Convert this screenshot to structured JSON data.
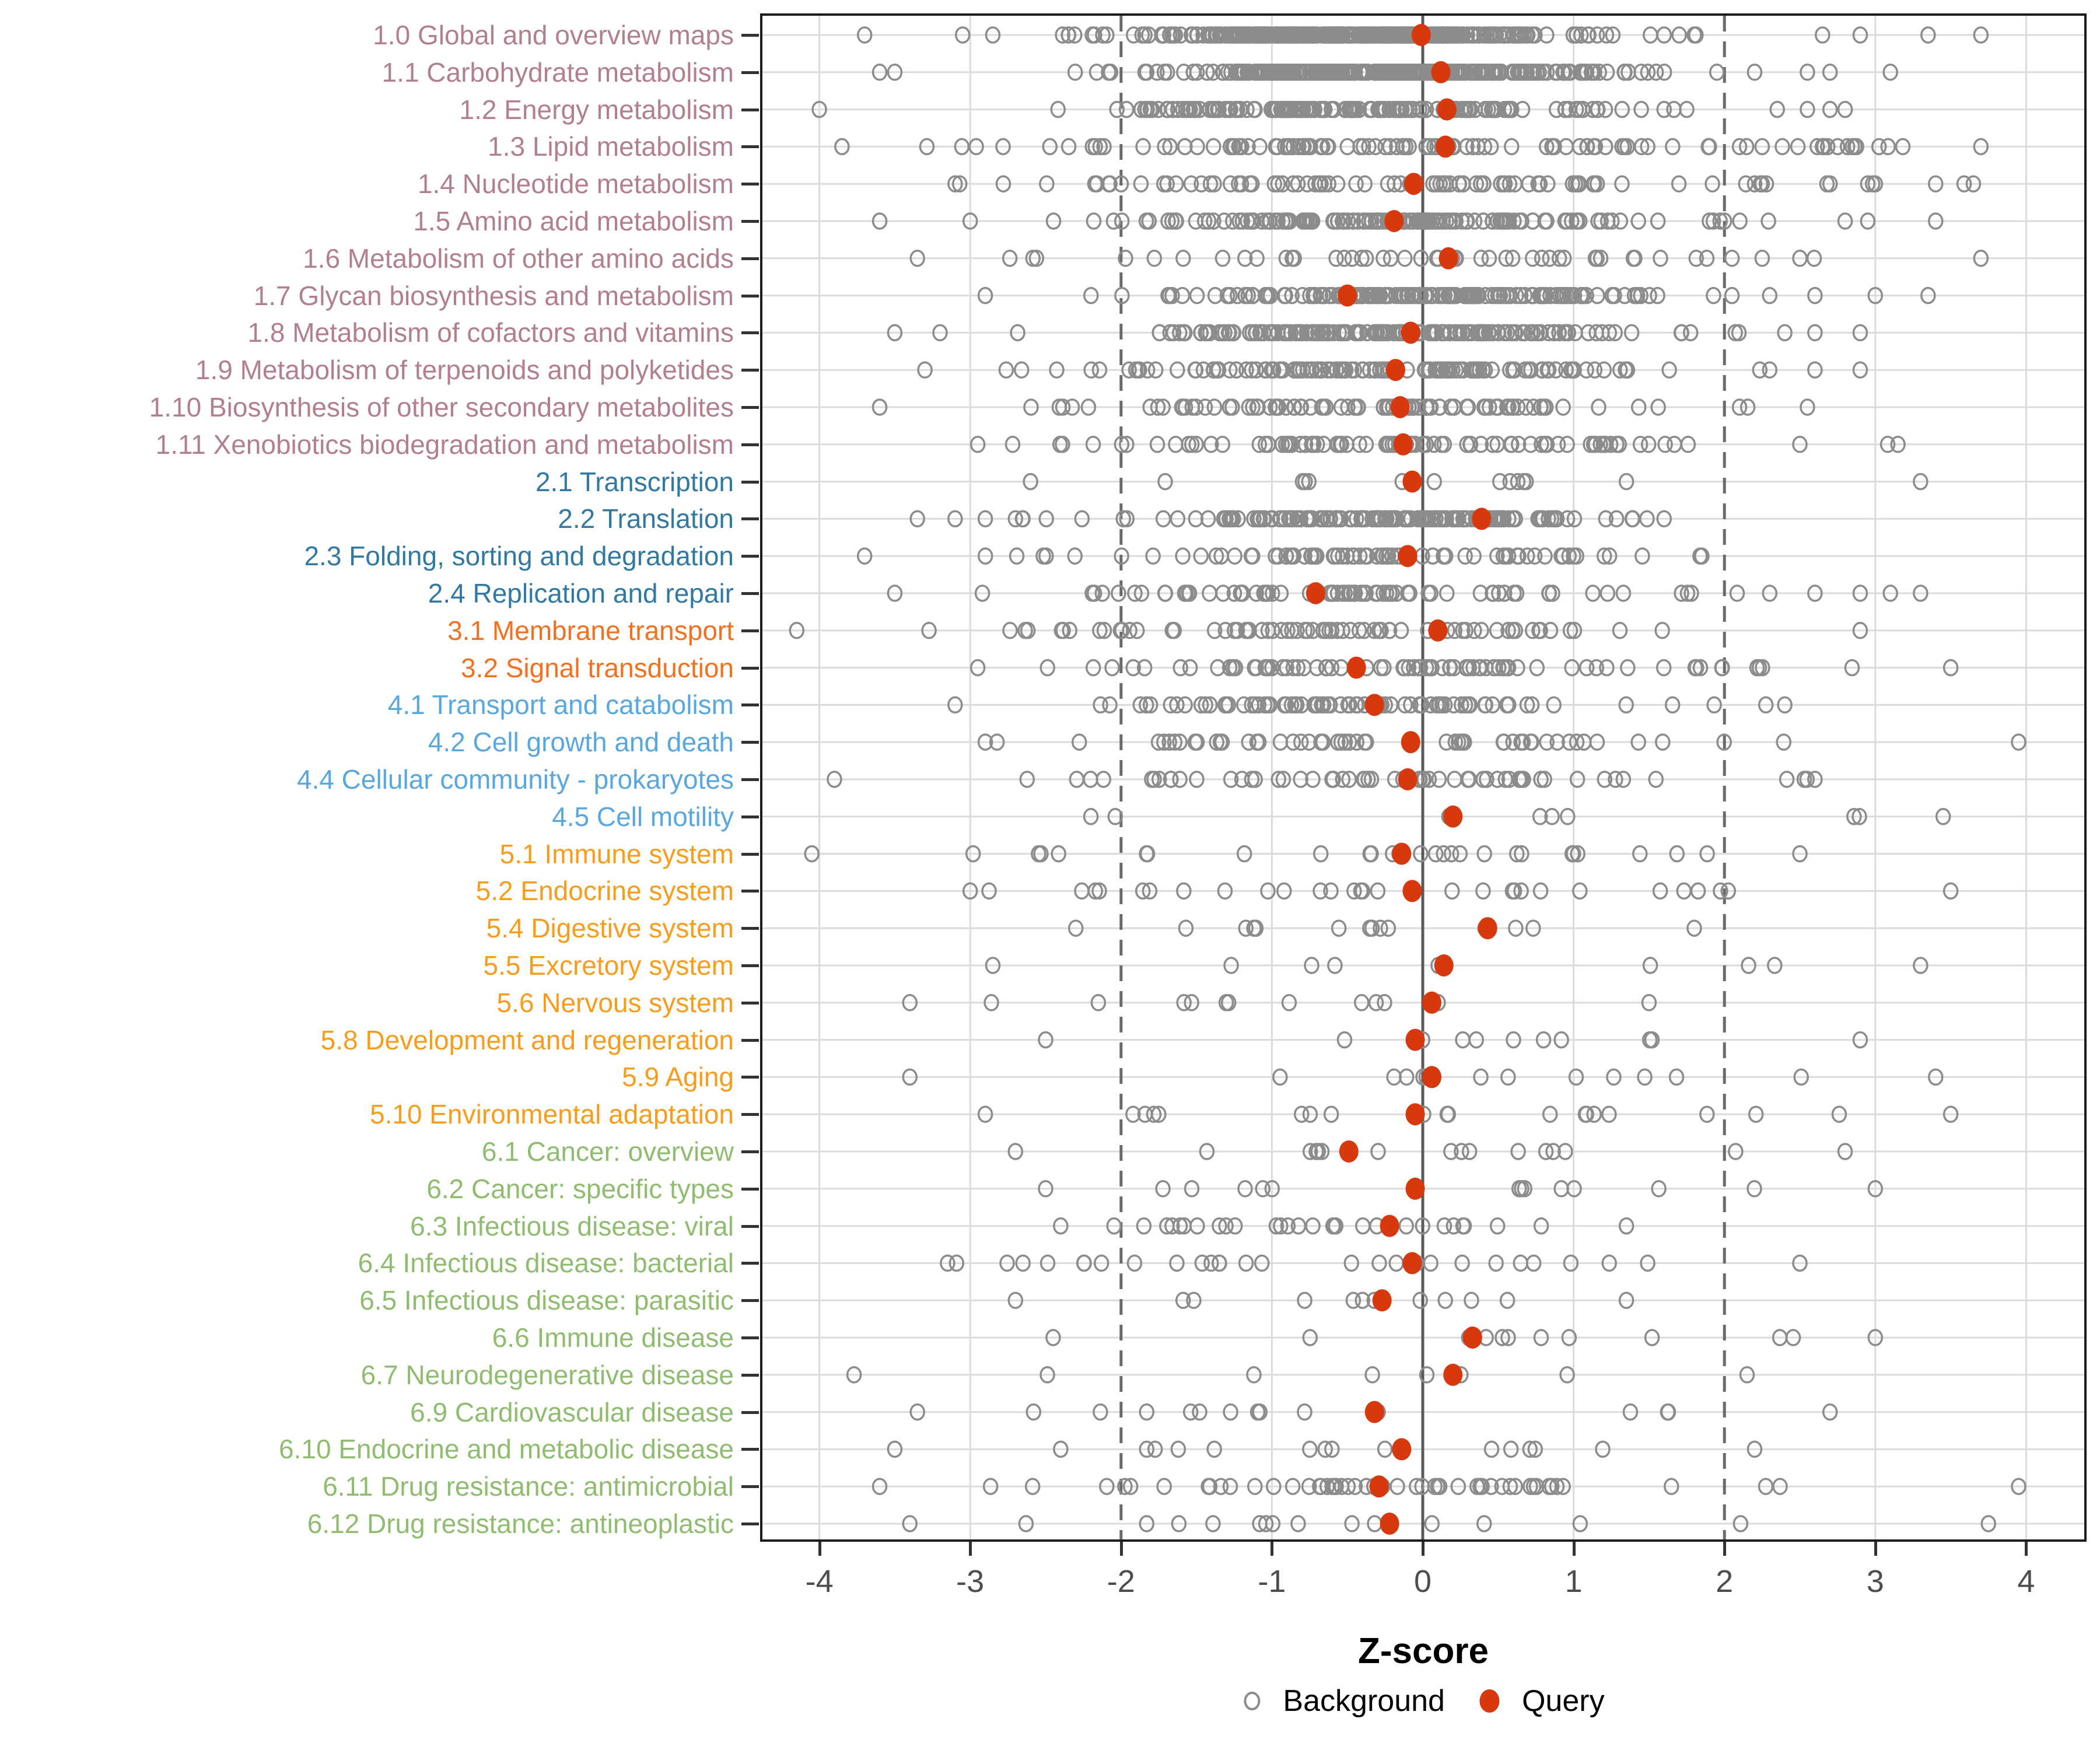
{
  "chart_data": {
    "type": "scatter",
    "subtype": "strip-dot-plot",
    "title": "",
    "xlabel": "Z-score",
    "ylabel": "",
    "xlim": [
      -4.4,
      4.4
    ],
    "x_ticks": [
      "-4",
      "-3",
      "-2",
      "-1",
      "0",
      "1",
      "2",
      "3",
      "4"
    ],
    "x_tick_values": [
      -4,
      -3,
      -2,
      -1,
      0,
      1,
      2,
      3,
      4
    ],
    "grid": "on",
    "legend_position": "bottom",
    "guides": {
      "solid_line_x": 0,
      "dashed_lines_x": [
        -2,
        2
      ]
    },
    "series_names": [
      "Background",
      "Query"
    ],
    "group_colors": {
      "1": "#B2808C",
      "2": "#3279A2",
      "3": "#F3701E",
      "4": "#58A7DE",
      "5": "#F89C1B",
      "6": "#8FBC6F"
    },
    "rows": [
      {
        "label": "1.0 Global and overview maps",
        "group": "1",
        "query": -0.01,
        "bg": {
          "n": 360,
          "mean": -0.45,
          "sd": 0.75,
          "min": -3.7,
          "max": 3.7,
          "outliers": [
            -3.05,
            -2.85,
            1.6,
            1.7,
            1.8,
            2.65,
            2.9,
            3.35
          ]
        }
      },
      {
        "label": "1.1 Carbohydrate metabolism",
        "group": "1",
        "query": 0.12,
        "bg": {
          "n": 330,
          "mean": -0.3,
          "sd": 0.72,
          "min": -3.6,
          "max": 3.1,
          "outliers": [
            -3.5,
            1.95,
            2.2,
            2.55,
            2.7
          ]
        }
      },
      {
        "label": "1.2 Energy metabolism",
        "group": "1",
        "query": 0.16,
        "bg": {
          "n": 160,
          "mean": -0.45,
          "sd": 0.85,
          "min": -4.0,
          "max": 2.8,
          "outliers": [
            1.6,
            1.75,
            2.35,
            2.55,
            2.7
          ]
        }
      },
      {
        "label": "1.3 Lipid metabolism",
        "group": "1",
        "query": 0.15,
        "bg": {
          "n": 105,
          "mean": -0.1,
          "sd": 1.5,
          "min": -3.85,
          "max": 3.7,
          "outliers": [
            1.9,
            2.1,
            2.25,
            2.65,
            2.75
          ]
        }
      },
      {
        "label": "1.4 Nucleotide metabolism",
        "group": "1",
        "query": -0.06,
        "bg": {
          "n": 80,
          "mean": -0.15,
          "sd": 1.35,
          "min": -3.1,
          "max": 3.65,
          "outliers": [
            2.2,
            2.7,
            2.95,
            3.0,
            3.4
          ]
        }
      },
      {
        "label": "1.5 Amino acid metabolism",
        "group": "1",
        "query": -0.19,
        "bg": {
          "n": 145,
          "mean": -0.3,
          "sd": 0.9,
          "min": -3.6,
          "max": 3.4,
          "outliers": [
            -3.0,
            1.9,
            2.0,
            2.8,
            2.95
          ]
        }
      },
      {
        "label": "1.6 Metabolism of other amino acids",
        "group": "1",
        "query": 0.17,
        "bg": {
          "n": 46,
          "mean": -0.1,
          "sd": 1.45,
          "min": -3.35,
          "max": 3.7,
          "outliers": [
            2.05,
            2.25,
            2.5
          ]
        }
      },
      {
        "label": "1.7 Glycan biosynthesis and metabolism",
        "group": "1",
        "query": -0.5,
        "bg": {
          "n": 165,
          "mean": -0.05,
          "sd": 0.8,
          "min": -2.9,
          "max": 3.35,
          "outliers": [
            2.3,
            2.6,
            3.0
          ]
        }
      },
      {
        "label": "1.8 Metabolism of cofactors and vitamins",
        "group": "1",
        "query": -0.08,
        "bg": {
          "n": 185,
          "mean": -0.2,
          "sd": 0.9,
          "min": -3.5,
          "max": 2.9,
          "outliers": [
            -3.2,
            2.4,
            2.6
          ]
        }
      },
      {
        "label": "1.9 Metabolism of terpenoids and polyketides",
        "group": "1",
        "query": -0.18,
        "bg": {
          "n": 125,
          "mean": -0.2,
          "sd": 1.0,
          "min": -3.3,
          "max": 2.9,
          "outliers": [
            2.3,
            2.6
          ]
        }
      },
      {
        "label": "1.10 Biosynthesis of other secondary metabolites",
        "group": "1",
        "query": -0.15,
        "bg": {
          "n": 90,
          "mean": -0.35,
          "sd": 1.1,
          "min": -3.6,
          "max": 2.55,
          "outliers": [
            2.1
          ]
        }
      },
      {
        "label": "1.11 Xenobiotics biodegradation and metabolism",
        "group": "1",
        "query": -0.13,
        "bg": {
          "n": 90,
          "mean": -0.1,
          "sd": 1.05,
          "min": -2.95,
          "max": 3.15,
          "outliers": [
            2.5
          ]
        }
      },
      {
        "label": "2.1 Transcription",
        "group": "2",
        "query": -0.07,
        "bg": {
          "n": 9,
          "mean": 0.3,
          "sd": 1.4,
          "min": -2.6,
          "max": 3.3,
          "outliers": [
            -0.78,
            0.63,
            1.35
          ]
        }
      },
      {
        "label": "2.2 Translation",
        "group": "2",
        "query": 0.39,
        "bg": {
          "n": 165,
          "mean": -0.3,
          "sd": 0.8,
          "min": -3.35,
          "max": 1.6,
          "outliers": [
            -3.1,
            -2.9,
            -2.7
          ]
        }
      },
      {
        "label": "2.3 Folding, sorting and degradation",
        "group": "2",
        "query": -0.1,
        "bg": {
          "n": 72,
          "mean": -0.3,
          "sd": 1.0,
          "min": -3.7,
          "max": 1.85,
          "outliers": []
        }
      },
      {
        "label": "2.4 Replication and repair",
        "group": "2",
        "query": -0.71,
        "bg": {
          "n": 80,
          "mean": -0.55,
          "sd": 1.0,
          "min": -3.5,
          "max": 3.3,
          "outliers": [
            2.3,
            2.6,
            2.9,
            3.1
          ]
        }
      },
      {
        "label": "3.1 Membrane transport",
        "group": "3",
        "query": 0.1,
        "bg": {
          "n": 68,
          "mean": -0.45,
          "sd": 1.25,
          "min": -4.15,
          "max": 2.9,
          "outliers": []
        }
      },
      {
        "label": "3.2 Signal transduction",
        "group": "3",
        "query": -0.44,
        "bg": {
          "n": 82,
          "mean": -0.15,
          "sd": 1.15,
          "min": -2.95,
          "max": 3.5,
          "outliers": []
        }
      },
      {
        "label": "4.1 Transport and catabolism",
        "group": "4",
        "query": -0.32,
        "bg": {
          "n": 78,
          "mean": -0.3,
          "sd": 0.95,
          "min": -3.1,
          "max": 2.4,
          "outliers": []
        }
      },
      {
        "label": "4.2 Cell growth and death",
        "group": "4",
        "query": -0.08,
        "bg": {
          "n": 52,
          "mean": -0.1,
          "sd": 1.25,
          "min": -2.9,
          "max": 3.95,
          "outliers": []
        }
      },
      {
        "label": "4.4 Cellular community - prokaryotes",
        "group": "4",
        "query": -0.1,
        "bg": {
          "n": 58,
          "mean": -0.3,
          "sd": 1.2,
          "min": -3.9,
          "max": 2.6,
          "outliers": []
        }
      },
      {
        "label": "4.5 Cell motility",
        "group": "4",
        "query": 0.2,
        "bg": {
          "n": 7,
          "mean": 0.4,
          "sd": 1.4,
          "min": -2.2,
          "max": 3.45,
          "outliers": []
        }
      },
      {
        "label": "5.1 Immune system",
        "group": "5",
        "query": -0.14,
        "bg": {
          "n": 26,
          "mean": -0.3,
          "sd": 1.45,
          "min": -4.05,
          "max": 2.5,
          "outliers": []
        }
      },
      {
        "label": "5.2 Endocrine system",
        "group": "5",
        "query": -0.07,
        "bg": {
          "n": 28,
          "mean": -0.05,
          "sd": 1.45,
          "min": -3.0,
          "max": 3.5,
          "outliers": []
        }
      },
      {
        "label": "5.4 Digestive system",
        "group": "5",
        "query": 0.43,
        "bg": {
          "n": 12,
          "mean": -0.2,
          "sd": 1.05,
          "min": -2.3,
          "max": 1.8,
          "outliers": []
        }
      },
      {
        "label": "5.5 Excretory system",
        "group": "5",
        "query": 0.14,
        "bg": {
          "n": 7,
          "mean": 0.2,
          "sd": 1.5,
          "min": -2.85,
          "max": 3.3,
          "outliers": []
        }
      },
      {
        "label": "5.6 Nervous system",
        "group": "5",
        "query": 0.06,
        "bg": {
          "n": 11,
          "mean": -0.4,
          "sd": 1.25,
          "min": -3.4,
          "max": 1.5,
          "outliers": []
        }
      },
      {
        "label": "5.8 Development and regeneration",
        "group": "5",
        "query": -0.05,
        "bg": {
          "n": 9,
          "mean": 0.0,
          "sd": 1.25,
          "min": -2.5,
          "max": 2.9,
          "outliers": []
        }
      },
      {
        "label": "5.9 Aging",
        "group": "5",
        "query": 0.06,
        "bg": {
          "n": 12,
          "mean": 0.0,
          "sd": 1.6,
          "min": -3.4,
          "max": 3.4,
          "outliers": []
        }
      },
      {
        "label": "5.10 Environmental adaptation",
        "group": "5",
        "query": -0.05,
        "bg": {
          "n": 18,
          "mean": 0.15,
          "sd": 1.4,
          "min": -2.9,
          "max": 3.5,
          "outliers": []
        }
      },
      {
        "label": "6.1 Cancer: overview",
        "group": "6",
        "query": -0.49,
        "bg": {
          "n": 14,
          "mean": -0.2,
          "sd": 1.35,
          "min": -2.7,
          "max": 2.8,
          "outliers": []
        }
      },
      {
        "label": "6.2 Cancer: specific types",
        "group": "6",
        "query": -0.05,
        "bg": {
          "n": 12,
          "mean": 0.0,
          "sd": 1.35,
          "min": -2.5,
          "max": 3.0,
          "outliers": []
        }
      },
      {
        "label": "6.3 Infectious disease: viral",
        "group": "6",
        "query": -0.22,
        "bg": {
          "n": 28,
          "mean": -0.4,
          "sd": 0.9,
          "min": -2.4,
          "max": 1.35,
          "outliers": []
        }
      },
      {
        "label": "6.4 Infectious disease: bacterial",
        "group": "6",
        "query": -0.07,
        "bg": {
          "n": 24,
          "mean": -0.5,
          "sd": 1.3,
          "min": -3.15,
          "max": 2.5,
          "outliers": [
            -2.65,
            -2.13,
            -1.63
          ]
        }
      },
      {
        "label": "6.5 Infectious disease: parasitic",
        "group": "6",
        "query": -0.27,
        "bg": {
          "n": 10,
          "mean": -0.35,
          "sd": 0.9,
          "min": -2.7,
          "max": 1.35,
          "outliers": []
        }
      },
      {
        "label": "6.6 Immune disease",
        "group": "6",
        "query": 0.33,
        "bg": {
          "n": 8,
          "mean": 0.3,
          "sd": 1.5,
          "min": -2.45,
          "max": 3.0,
          "outliers": [
            0.42,
            0.97,
            1.52
          ]
        }
      },
      {
        "label": "6.7 Neurodegenerative disease",
        "group": "6",
        "query": 0.2,
        "bg": {
          "n": 6,
          "mean": -0.3,
          "sd": 1.5,
          "min": -3.77,
          "max": 2.15,
          "outliers": []
        }
      },
      {
        "label": "6.9 Cardiovascular disease",
        "group": "6",
        "query": -0.32,
        "bg": {
          "n": 10,
          "mean": -0.3,
          "sd": 1.4,
          "min": -3.35,
          "max": 2.7,
          "outliers": [
            -2.58,
            -1.83,
            -1.08
          ]
        }
      },
      {
        "label": "6.10 Endocrine and metabolic disease",
        "group": "6",
        "query": -0.14,
        "bg": {
          "n": 12,
          "mean": -0.3,
          "sd": 1.35,
          "min": -3.5,
          "max": 2.2,
          "outliers": [
            -2.4,
            -1.83
          ]
        }
      },
      {
        "label": "6.11 Drug resistance: antimicrobial",
        "group": "6",
        "query": -0.29,
        "bg": {
          "n": 52,
          "mean": -0.1,
          "sd": 1.35,
          "min": -3.6,
          "max": 3.95,
          "outliers": []
        }
      },
      {
        "label": "6.12 Drug resistance: antineoplastic",
        "group": "6",
        "query": -0.22,
        "bg": {
          "n": 11,
          "mean": -0.3,
          "sd": 1.5,
          "min": -3.4,
          "max": 3.75,
          "outliers": [
            -2.63,
            -1.83,
            -1.04
          ]
        }
      }
    ]
  },
  "legend": {
    "background_label": "Background",
    "query_label": "Query"
  },
  "colors": {
    "background_point_stroke": "#8C8C8C",
    "query_point_fill": "#D7380D",
    "gridline": "#DBDBDB",
    "zero_line": "#5A5A5A",
    "dashed_line": "#6A6A6A",
    "panel_border": "#1C1C1C",
    "tick_mark": "#333333",
    "tick_label": "#4D4D4D"
  }
}
